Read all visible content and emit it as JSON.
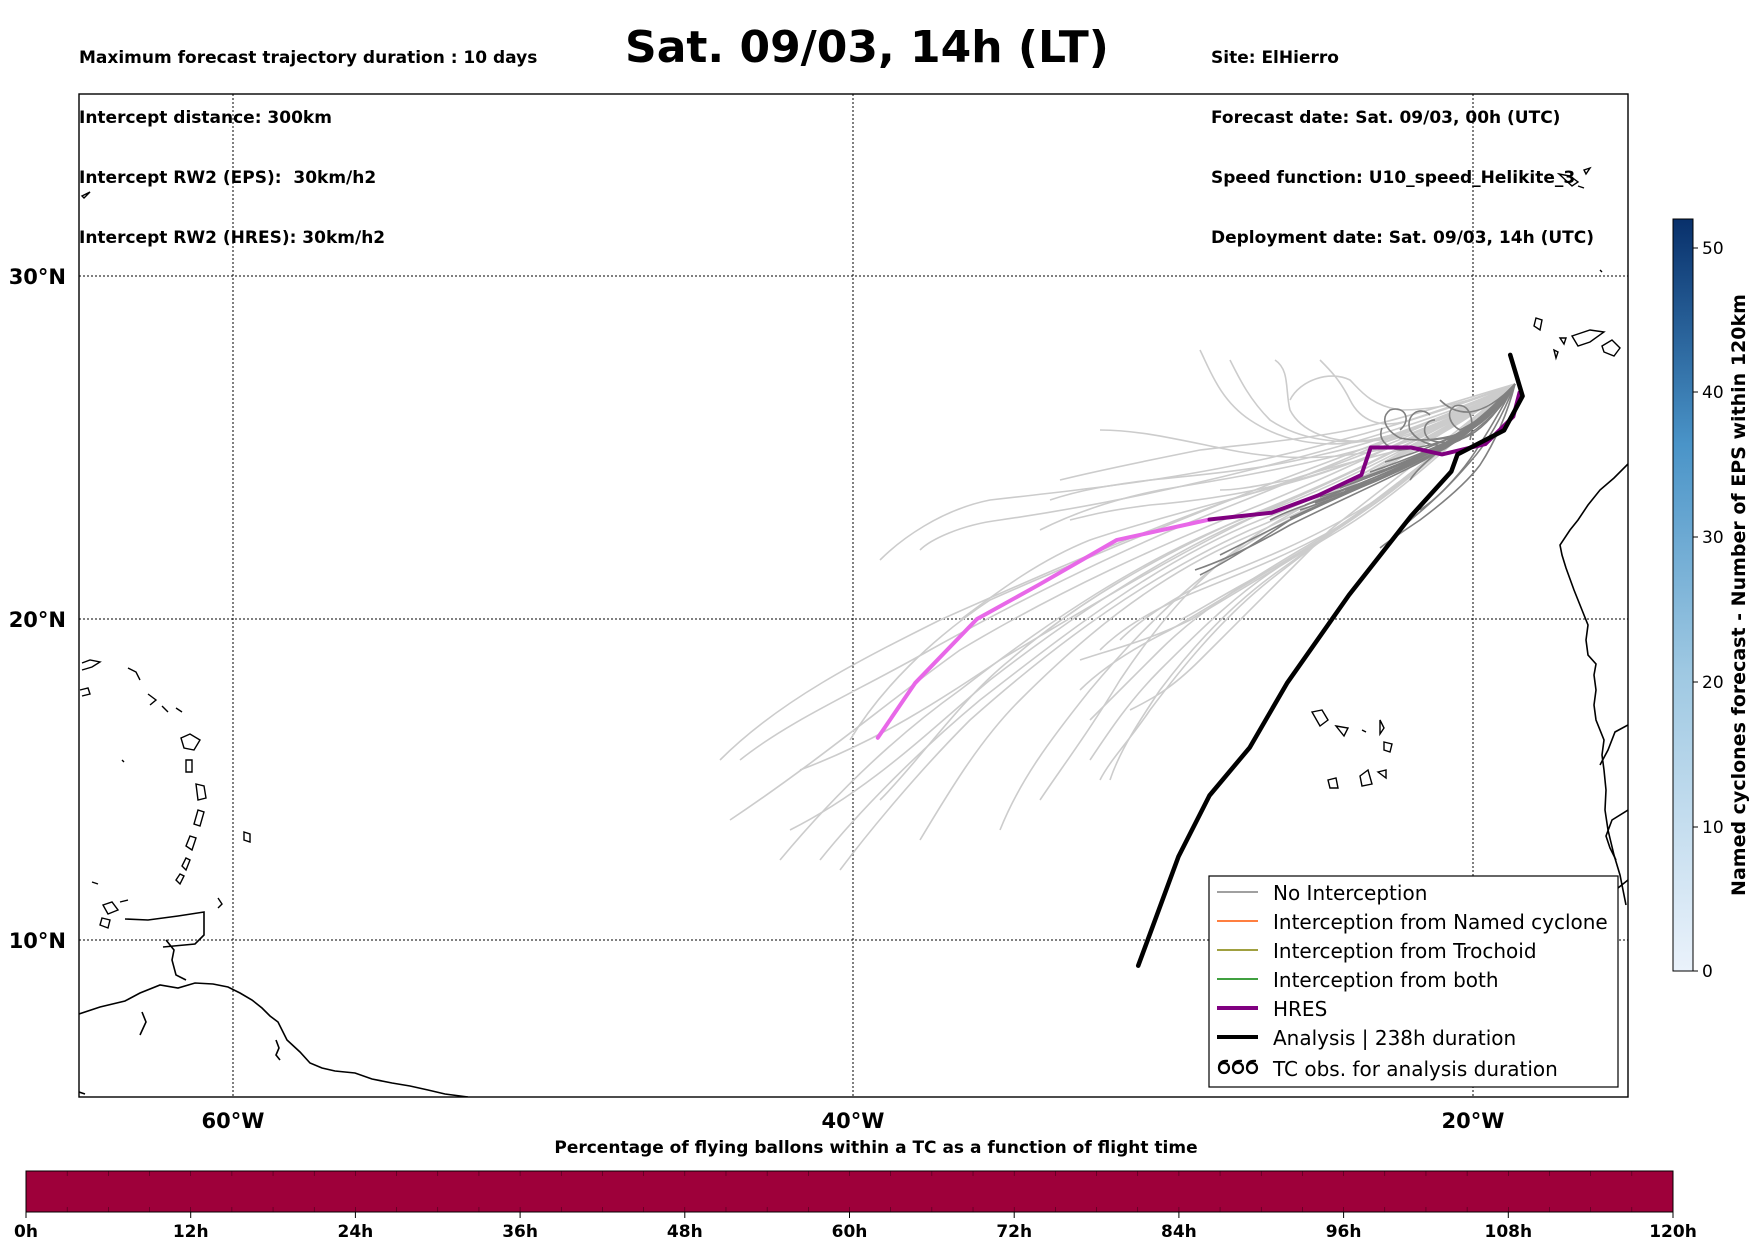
{
  "header": {
    "left_lines": [
      "Maximum forecast trajectory duration : 10 days",
      "Intercept distance: 300km",
      "Intercept RW2 (EPS):  30km/h2",
      "Intercept RW2 (HRES): 30km/h2"
    ],
    "right_lines": [
      "Site: ElHierro",
      "Forecast date: Sat. 09/03, 00h (UTC)",
      "Speed function: U10_speed_Helikite_3",
      "Deployment date: Sat. 09/03, 14h (UTC)"
    ],
    "title": "Sat. 09/03, 14h (LT)"
  },
  "map": {
    "lon_labels": [
      "60°W",
      "40°W",
      "20°W"
    ],
    "lat_labels": [
      "30°N",
      "20°N",
      "10°N"
    ],
    "extent": {
      "lon_min": -65,
      "lon_max": -15,
      "lat_min": 5.3,
      "lat_max": 34.6
    },
    "hres_track_color": "#800080",
    "hres_early_color": "#e868e8",
    "analysis_track_color": "#000000",
    "eps_no_interception_color": "#808080",
    "eps_far_color": "#cccccc"
  },
  "legend": {
    "items": [
      {
        "label": "No Interception",
        "color": "#808080"
      },
      {
        "label": "Interception from Named cyclone",
        "color": "#ff5500"
      },
      {
        "label": "Interception from Trochoid",
        "color": "#808000"
      },
      {
        "label": "Interception from both",
        "color": "#008000"
      },
      {
        "label": "HRES",
        "color": "#800080"
      },
      {
        "label": "Analysis | 238h duration",
        "color": "#000000"
      },
      {
        "label": "TC obs. for analysis duration",
        "icon": "cyclone-symbol-icon"
      }
    ]
  },
  "colorbar": {
    "label": "Named cyclones forecast - Number of EPS within 120km",
    "ticks": [
      "0",
      "10",
      "20",
      "30",
      "40",
      "50"
    ],
    "range": [
      0,
      52
    ],
    "color_low": "#e4eef8",
    "color_high": "#08306b"
  },
  "timebar": {
    "title": "Percentage of flying ballons within a TC as a function of flight time",
    "ticks": [
      "0h",
      "12h",
      "24h",
      "36h",
      "48h",
      "60h",
      "72h",
      "84h",
      "96h",
      "108h",
      "120h"
    ],
    "fill_color": "#9e003a",
    "percent_in_tc": 100
  },
  "chart_data": {
    "type": "map-trajectories",
    "hres_track": [
      {
        "lon": -18.5,
        "lat": 26.6
      },
      {
        "lon": -18.7,
        "lat": 25.9
      },
      {
        "lon": -19.6,
        "lat": 25.1
      },
      {
        "lon": -21.0,
        "lat": 24.8
      },
      {
        "lon": -22.0,
        "lat": 25.0
      },
      {
        "lon": -23.3,
        "lat": 25.0
      },
      {
        "lon": -23.6,
        "lat": 24.2
      },
      {
        "lon": -25.0,
        "lat": 23.6
      },
      {
        "lon": -26.5,
        "lat": 23.1
      },
      {
        "lon": -28.5,
        "lat": 22.9
      },
      {
        "lon": -31.5,
        "lat": 22.3
      },
      {
        "lon": -34.0,
        "lat": 21.0
      },
      {
        "lon": -36.0,
        "lat": 20.0
      },
      {
        "lon": -38.0,
        "lat": 18.0
      },
      {
        "lon": -39.2,
        "lat": 16.3
      }
    ],
    "analysis_track": [
      {
        "lon": -18.8,
        "lat": 27.7
      },
      {
        "lon": -18.4,
        "lat": 26.5
      },
      {
        "lon": -19.0,
        "lat": 25.5
      },
      {
        "lon": -20.5,
        "lat": 24.8
      },
      {
        "lon": -20.7,
        "lat": 24.3
      },
      {
        "lon": -22.0,
        "lat": 23.0
      },
      {
        "lon": -24.0,
        "lat": 20.7
      },
      {
        "lon": -26.0,
        "lat": 18.0
      },
      {
        "lon": -27.2,
        "lat": 16.0
      },
      {
        "lon": -28.5,
        "lat": 14.5
      },
      {
        "lon": -29.5,
        "lat": 12.6
      },
      {
        "lon": -30.8,
        "lat": 9.2
      }
    ]
  }
}
